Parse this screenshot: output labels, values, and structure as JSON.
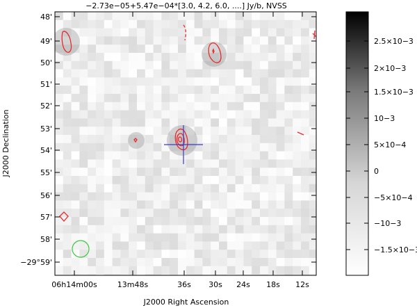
{
  "title": "−2.73e−05+5.47e−04*[3.0, 4.2, 6.0, ....] Jy/b, NVSS",
  "ylabel": "J2000 Declination",
  "xlabel": "J2000 Right Ascension",
  "y_ticks": [
    "48'",
    "49'",
    "50'",
    "51'",
    "52'",
    "53'",
    "54'",
    "55'",
    "56'",
    "57'",
    "58'",
    "−29°59'"
  ],
  "x_ticks": [
    "06h14m00s",
    "13m48s",
    "36s",
    "30s",
    "24s",
    "18s",
    "12s"
  ],
  "colorbar_ticks": [
    "2.5×10−3",
    "2×10−3",
    "1.5×10−3",
    "10−3",
    "5×10−4",
    "0",
    "−5×10−4",
    "−10−3",
    "−1.5×10−3"
  ],
  "colors": {
    "contour": "#e8292c",
    "marker": "#3b3bd0",
    "beam": "#39c839"
  }
}
